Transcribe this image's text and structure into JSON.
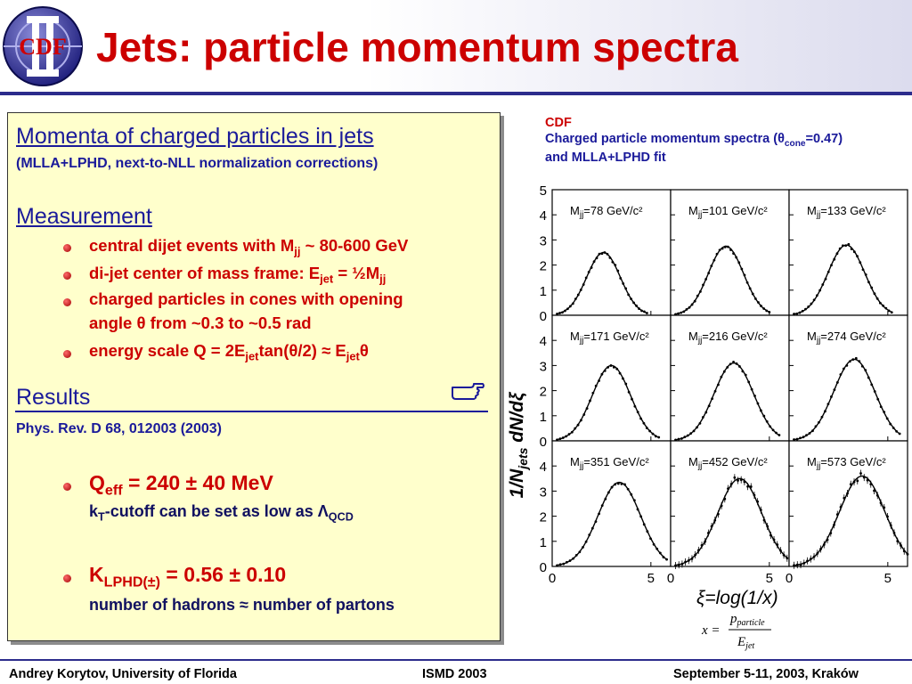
{
  "header": {
    "title": "Jets: particle momentum spectra",
    "logo_text": "CDF"
  },
  "left_panel": {
    "heading1": "Momenta of charged particles in jets",
    "heading1_sub": "(MLLA+LPHD, next-to-NLL normalization corrections)",
    "heading2": "Measurement",
    "measurement_bullets": [
      {
        "pre": "central dijet events with M",
        "sub": "jj",
        "post": " ~ 80-600 GeV"
      },
      {
        "pre": "di-jet center of mass frame: E",
        "sub": "jet",
        "mid": " = ½M",
        "sub2": "jj"
      },
      {
        "line1": "charged particles in cones with opening",
        "line2": "angle θ from ~0.3 to ~0.5 rad"
      },
      {
        "pre": "energy scale Q = 2E",
        "sub": "jet",
        "mid": "tan(θ/2) ≈ E",
        "sub2": "jet",
        "post": "θ"
      }
    ],
    "heading3": "Results",
    "results_icon": "pointing-hand-icon",
    "reference": "Phys. Rev. D 68, 012003 (2003)",
    "result1": {
      "pre": "Q",
      "sub": "eff",
      "post": " = 240 ± 40 MeV",
      "note_pre": "k",
      "note_sub": "T",
      "note_post": "-cutoff can be set as low as Λ",
      "note_sub2": "QCD"
    },
    "result2": {
      "pre": "K",
      "sub": "LPHD(±)",
      "post": " = 0.56 ± 0.10",
      "note": "number of hadrons ≈ number of partons"
    }
  },
  "figure": {
    "caption_line1": "CDF",
    "caption_line2_pre": "Charged particle momentum spectra (θ",
    "caption_line2_sub": "cone",
    "caption_line2_post": "=0.47)",
    "caption_line3": "and MLLA+LPHD fit",
    "ylabel": "1/N",
    "ylabel_sub": "jets",
    "ylabel_post": " dN/dξ",
    "xlabel": "ξ=log(1/x)",
    "formula_lhs": "x =",
    "formula_num": "p",
    "formula_num_sub": "particle",
    "formula_den": "E",
    "formula_den_sub": "jet",
    "y_ticks": [
      "0",
      "1",
      "2",
      "3",
      "4",
      "5"
    ],
    "x_ticks": [
      "0",
      "5"
    ],
    "colors": {
      "caption_red": "#cc0000",
      "caption_blue": "#1a1a9a"
    }
  },
  "chart_data": {
    "type": "scatter",
    "title": "",
    "xlabel": "ξ=log(1/x)",
    "ylabel": "1/Njets dN/dξ",
    "xlim": [
      0,
      6
    ],
    "ylim": [
      0,
      5
    ],
    "grid": false,
    "panels": [
      {
        "label_pre": "M",
        "label_sub": "jj",
        "label_post": "=78 GeV/c²",
        "peak_x": 2.6,
        "peak_y": 2.5,
        "width": 1.15,
        "x_max": 4.8
      },
      {
        "label_pre": "M",
        "label_sub": "jj",
        "label_post": "=101 GeV/c²",
        "peak_x": 2.8,
        "peak_y": 2.75,
        "width": 1.2,
        "x_max": 5.0
      },
      {
        "label_pre": "M",
        "label_sub": "jj",
        "label_post": "=133 GeV/c²",
        "peak_x": 2.9,
        "peak_y": 2.8,
        "width": 1.25,
        "x_max": 5.2
      },
      {
        "label_pre": "M",
        "label_sub": "jj",
        "label_post": "=171 GeV/c²",
        "peak_x": 3.0,
        "peak_y": 3.0,
        "width": 1.3,
        "x_max": 5.4
      },
      {
        "label_pre": "M",
        "label_sub": "jj",
        "label_post": "=216 GeV/c²",
        "peak_x": 3.2,
        "peak_y": 3.1,
        "width": 1.35,
        "x_max": 5.5
      },
      {
        "label_pre": "M",
        "label_sub": "jj",
        "label_post": "=274 GeV/c²",
        "peak_x": 3.3,
        "peak_y": 3.25,
        "width": 1.4,
        "x_max": 5.6
      },
      {
        "label_pre": "M",
        "label_sub": "jj",
        "label_post": "=351 GeV/c²",
        "peak_x": 3.4,
        "peak_y": 3.35,
        "width": 1.45,
        "x_max": 5.8
      },
      {
        "label_pre": "M",
        "label_sub": "jj",
        "label_post": "=452 GeV/c²",
        "peak_x": 3.5,
        "peak_y": 3.5,
        "width": 1.5,
        "x_max": 5.9
      },
      {
        "label_pre": "M",
        "label_sub": "jj",
        "label_post": "=573 GeV/c²",
        "peak_x": 3.7,
        "peak_y": 3.6,
        "width": 1.55,
        "x_max": 6.0
      }
    ]
  },
  "footer": {
    "author": "Andrey Korytov, University of Florida",
    "conference": "ISMD 2003",
    "date": "September 5-11, 2003, Kraków"
  }
}
